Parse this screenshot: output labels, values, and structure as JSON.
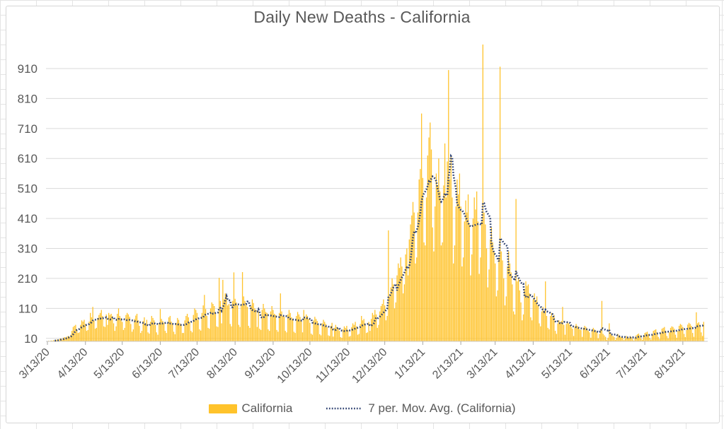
{
  "title": "Daily New Deaths - California",
  "colors": {
    "bars": "#FFC32B",
    "moving_average": "#2E4170",
    "gridline": "#DADADA",
    "axis_line": "#C8C8C8",
    "tick_mark": "#A8A8A8",
    "text": "#595959"
  },
  "legend": {
    "items": [
      {
        "label": "California",
        "marker": "bar-swatch"
      },
      {
        "label": "7 per. Mov. Avg. (California)",
        "marker": "dotted-line"
      }
    ]
  },
  "chart_data": {
    "type": "bar",
    "title": "Daily New Deaths - California",
    "xlabel": "",
    "ylabel": "",
    "grid": true,
    "legend_position": "bottom",
    "ylim": [
      0,
      1000
    ],
    "y_ticks": [
      10,
      110,
      210,
      310,
      410,
      510,
      610,
      710,
      810,
      910
    ],
    "x_start_date": "3/13/20",
    "x_tick_labels": [
      "3/13/20",
      "4/13/20",
      "5/13/20",
      "6/13/20",
      "7/13/20",
      "8/13/20",
      "9/13/20",
      "10/13/20",
      "11/13/20",
      "12/13/20",
      "1/13/21",
      "2/13/21",
      "3/13/21",
      "4/13/21",
      "5/13/21",
      "6/13/21",
      "7/13/21",
      "8/13/21"
    ],
    "x_tick_day_offsets": [
      0,
      31,
      61,
      92,
      122,
      153,
      184,
      214,
      245,
      275,
      306,
      337,
      365,
      396,
      426,
      457,
      487,
      518
    ],
    "series": [
      {
        "name": "California",
        "type": "bar",
        "color": "#FFC32B",
        "values": [
          1,
          2,
          1,
          3,
          2,
          4,
          3,
          5,
          6,
          4,
          8,
          10,
          7,
          12,
          14,
          11,
          16,
          18,
          15,
          22,
          35,
          48,
          52,
          55,
          40,
          28,
          30,
          55,
          70,
          66,
          72,
          58,
          35,
          38,
          66,
          95,
          80,
          115,
          70,
          42,
          45,
          78,
          88,
          95,
          105,
          85,
          50,
          48,
          90,
          55,
          95,
          88,
          92,
          85,
          60,
          35,
          50,
          92,
          110,
          85,
          78,
          65,
          38,
          45,
          88,
          95,
          90,
          82,
          58,
          32,
          40,
          75,
          86,
          92,
          70,
          52,
          28,
          35,
          68,
          80,
          58,
          72,
          30,
          26,
          65,
          85,
          78,
          70,
          55,
          30,
          22,
          60,
          108,
          75,
          68,
          62,
          35,
          28,
          58,
          80,
          85,
          66,
          58,
          32,
          24,
          62,
          78,
          72,
          60,
          55,
          28,
          28,
          70,
          85,
          92,
          80,
          65,
          35,
          30,
          88,
          110,
          105,
          95,
          72,
          40,
          36,
          95,
          120,
          155,
          108,
          85,
          45,
          42,
          110,
          130,
          125,
          118,
          92,
          50,
          48,
          212,
          135,
          60,
          205,
          140,
          160,
          148,
          120,
          125,
          58,
          50,
          135,
          230,
          142,
          130,
          120,
          55,
          48,
          125,
          231,
          150,
          135,
          125,
          115,
          52,
          45,
          118,
          140,
          128,
          110,
          105,
          48,
          100,
          42,
          38,
          105,
          125,
          110,
          98,
          95,
          40,
          35,
          100,
          118,
          105,
          92,
          88,
          38,
          32,
          95,
          160,
          100,
          85,
          82,
          35,
          30,
          90,
          105,
          95,
          80,
          75,
          32,
          28,
          85,
          98,
          90,
          82,
          70,
          30,
          105,
          78,
          90,
          85,
          75,
          62,
          26,
          22,
          70,
          82,
          75,
          68,
          55,
          24,
          20,
          60,
          72,
          65,
          58,
          48,
          20,
          18,
          52,
          62,
          16,
          45,
          55,
          48,
          42,
          35,
          14,
          12,
          40,
          50,
          45,
          52,
          38,
          16,
          18,
          48,
          60,
          55,
          65,
          50,
          22,
          25,
          58,
          85,
          70,
          75,
          60,
          28,
          30,
          65,
          35,
          75,
          95,
          88,
          105,
          90,
          45,
          55,
          100,
          118,
          125,
          140,
          120,
          70,
          85,
          370,
          150,
          180,
          210,
          190,
          110,
          130,
          220,
          260,
          245,
          280,
          250,
          160,
          190,
          290,
          310,
          220,
          340,
          390,
          420,
          465,
          430,
          260,
          280,
          430,
          540,
          575,
          760,
          545,
          330,
          320,
          480,
          620,
          680,
          730,
          640,
          380,
          300,
          450,
          560,
          520,
          610,
          500,
          320,
          330,
          520,
          660,
          480,
          600,
          905,
          540,
          620,
          480,
          260,
          320,
          450,
          540,
          490,
          560,
          450,
          250,
          280,
          400,
          470,
          430,
          490,
          390,
          220,
          290,
          410,
          480,
          440,
          500,
          400,
          225,
          280,
          400,
          990,
          430,
          390,
          310,
          180,
          240,
          340,
          380,
          330,
          300,
          260,
          150,
          170,
          280,
          916,
          300,
          270,
          210,
          120,
          150,
          250,
          300,
          260,
          230,
          190,
          100,
          90,
          475,
          200,
          210,
          170,
          130,
          70,
          90,
          175,
          200,
          185,
          190,
          160,
          80,
          70,
          140,
          160,
          135,
          150,
          120,
          60,
          50,
          100,
          115,
          95,
          200,
          85,
          45,
          40,
          85,
          95,
          80,
          88,
          35,
          25,
          60,
          70,
          62,
          68,
          115,
          55,
          22,
          58,
          66,
          60,
          55,
          48,
          42,
          18,
          50,
          58,
          52,
          48,
          40,
          38,
          15,
          45,
          52,
          48,
          42,
          35,
          30,
          12,
          38,
          45,
          40,
          36,
          30,
          10,
          25,
          38,
          135,
          25,
          20,
          15,
          5,
          12,
          60,
          28,
          22,
          18,
          15,
          5,
          12,
          25,
          20,
          16,
          14,
          12,
          4,
          10,
          18,
          15,
          12,
          18,
          14,
          8,
          3,
          12,
          20,
          24,
          26,
          20,
          10,
          5,
          18,
          28,
          30,
          32,
          24,
          12,
          6,
          22,
          35,
          38,
          40,
          30,
          15,
          8,
          28,
          42,
          45,
          48,
          35,
          18,
          10,
          30,
          45,
          50,
          48,
          42,
          22,
          12,
          35,
          52,
          58,
          55,
          48,
          25,
          14,
          38,
          56,
          62,
          58,
          52,
          28,
          15,
          42,
          97,
          60,
          64,
          55,
          30,
          18,
          65
        ]
      },
      {
        "name": "7 per. Mov. Avg. (California)",
        "type": "line",
        "style": "dotted",
        "color": "#2E4170",
        "derived": "trailing 7-day moving average of the California daily values"
      }
    ]
  }
}
